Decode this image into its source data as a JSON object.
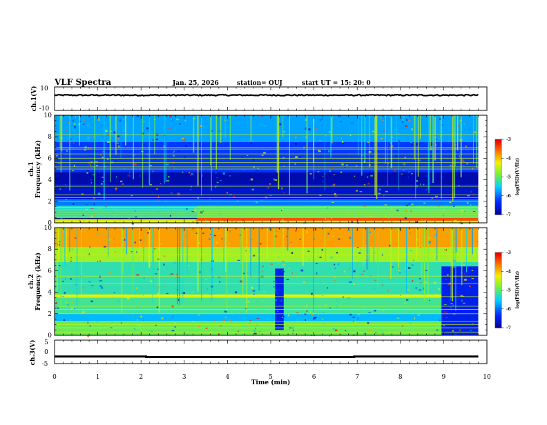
{
  "header": {
    "title": "VLF Spectra",
    "date": "Jan. 25, 2026",
    "station": "station= OUJ",
    "start": "start  UT =   15: 20: 0"
  },
  "chart_data": [
    {
      "type": "line",
      "panel": "ch1-waveform",
      "ylabel": "ch.1(V)",
      "ylim": [
        -10,
        10
      ],
      "yticks": [
        "10",
        "-10"
      ],
      "xlim": [
        0,
        10
      ],
      "series": [
        {
          "x": [
            0,
            9.8
          ],
          "y": [
            3.0,
            3.0
          ]
        }
      ]
    },
    {
      "type": "heatmap",
      "panel": "ch1-spectrogram",
      "ylabel_top": "ch.1",
      "ylabel": "Frequency  (kHz)",
      "ylim": [
        0,
        10
      ],
      "xlim": [
        0,
        10
      ],
      "yticks": [
        "0",
        "2",
        "4",
        "6",
        "8",
        "10"
      ],
      "colorbar": {
        "label": "log(PSD)(V²/Hz)",
        "range": [
          -7,
          -3
        ],
        "ticks": [
          "-3",
          "-4",
          "-5",
          "-6",
          "-7"
        ]
      },
      "bands": [
        {
          "f0": 0.0,
          "f1": 0.35,
          "x0": 0,
          "x1": 9.8,
          "level": -4.3
        },
        {
          "f0": 0.2,
          "f1": 0.45,
          "x0": 3.3,
          "x1": 9.8,
          "level": -3.4
        },
        {
          "f0": 0.45,
          "f1": 1.6,
          "x0": 0,
          "x1": 9.8,
          "level": -5.3
        },
        {
          "f0": 0.45,
          "f1": 1.6,
          "x0": 3.3,
          "x1": 9.8,
          "level": -5.0
        },
        {
          "f0": 1.6,
          "f1": 2.2,
          "x0": 0,
          "x1": 9.8,
          "level": -5.9
        },
        {
          "f0": 2.2,
          "f1": 3.6,
          "x0": 0,
          "x1": 9.8,
          "level": -6.6
        },
        {
          "f0": 3.6,
          "f1": 4.7,
          "x0": 0,
          "x1": 9.8,
          "level": -6.8
        },
        {
          "f0": 4.7,
          "f1": 7.5,
          "x0": 0,
          "x1": 9.8,
          "level": -6.2
        },
        {
          "f0": 7.5,
          "f1": 10,
          "x0": 0,
          "x1": 9.8,
          "level": -5.7
        }
      ],
      "lines": [
        0.55,
        0.75,
        1.0,
        1.2,
        1.45,
        2.0,
        2.35,
        2.6,
        3.4,
        5.0,
        5.2,
        5.6,
        6.0,
        6.4,
        6.85,
        7.0,
        8.2
      ]
    },
    {
      "type": "heatmap",
      "panel": "ch2-spectrogram",
      "ylabel_top": "ch.2",
      "ylabel": "Frequency  (kHz)",
      "ylim": [
        0,
        10
      ],
      "xlim": [
        0,
        10
      ],
      "yticks": [
        "0",
        "2",
        "4",
        "6",
        "8",
        "10"
      ],
      "colorbar": {
        "label": "log(PSD)(V²/Hz)",
        "range": [
          -7,
          -3
        ],
        "ticks": [
          "-3",
          "-4",
          "-5",
          "-6",
          "-7"
        ]
      },
      "bands": [
        {
          "f0": 0.0,
          "f1": 1.3,
          "x0": 0,
          "x1": 9.8,
          "level": -4.9
        },
        {
          "f0": 1.3,
          "f1": 2.0,
          "x0": 0,
          "x1": 9.8,
          "level": -5.6
        },
        {
          "f0": 2.0,
          "f1": 3.5,
          "x0": 0,
          "x1": 9.8,
          "level": -5.1
        },
        {
          "f0": 3.5,
          "f1": 3.8,
          "x0": 0,
          "x1": 9.8,
          "level": -4.2
        },
        {
          "f0": 3.8,
          "f1": 6.8,
          "x0": 0,
          "x1": 9.8,
          "level": -5.2
        },
        {
          "f0": 6.8,
          "f1": 8.2,
          "x0": 0,
          "x1": 9.8,
          "level": -4.6
        },
        {
          "f0": 8.2,
          "f1": 10,
          "x0": 0,
          "x1": 9.8,
          "level": -3.8
        },
        {
          "f0": 0.0,
          "f1": 6.4,
          "x0": 8.95,
          "x1": 9.8,
          "level": -6.4
        },
        {
          "f0": 0.5,
          "f1": 6.2,
          "x0": 5.1,
          "x1": 5.3,
          "level": -6.4
        }
      ],
      "lines": [
        0.3,
        0.7,
        1.0,
        1.3,
        2.0,
        2.4,
        2.7,
        3.6,
        4.8,
        5.5,
        7.5
      ]
    },
    {
      "type": "line",
      "panel": "ch3-waveform",
      "ylabel": "ch.3(V)",
      "ylim": [
        -5,
        5
      ],
      "yticks": [
        "5",
        "0",
        "-5"
      ],
      "xlim": [
        0,
        10
      ],
      "xlabel": "Time  (min)",
      "xticks": [
        "0",
        "1",
        "2",
        "3",
        "4",
        "5",
        "6",
        "7",
        "8",
        "9",
        "10"
      ],
      "series": [
        {
          "x": [
            0,
            2.12,
            2.12,
            6.93,
            6.93,
            9.8
          ],
          "y": [
            -2.0,
            -2.0,
            -2.2,
            -2.2,
            -2.0,
            -2.0
          ]
        }
      ]
    }
  ]
}
